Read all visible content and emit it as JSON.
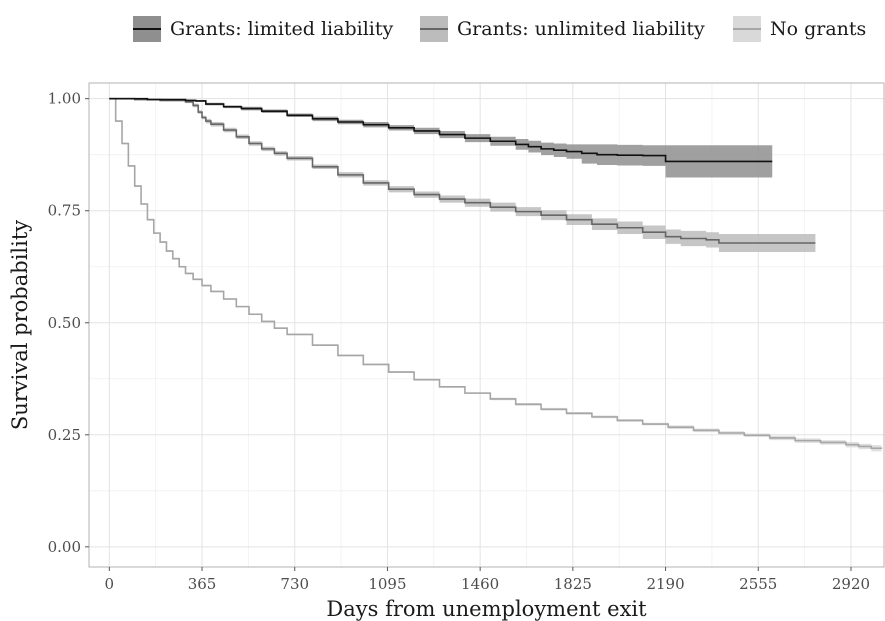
{
  "legend": {
    "items": [
      {
        "label": "Grants: limited liability",
        "band_color": "#8f8f8f",
        "line_color": "#111111"
      },
      {
        "label": "Grants: unlimited liability",
        "band_color": "#bcbcbc",
        "line_color": "#666666"
      },
      {
        "label": "No grants",
        "band_color": "#d9d9d9",
        "line_color": "#a6a6a6"
      }
    ]
  },
  "chart_data": {
    "type": "line",
    "xlabel": "Days from unemployment exit",
    "ylabel": "Survival probability",
    "xlim": [
      -80,
      3050
    ],
    "ylim": [
      -0.045,
      1.035
    ],
    "x_ticks": [
      0,
      365,
      730,
      1095,
      1460,
      1825,
      2190,
      2555,
      2920
    ],
    "y_ticks": [
      0.0,
      0.25,
      0.5,
      0.75,
      1.0
    ],
    "y_tick_labels": [
      "0.00",
      "0.25",
      "0.50",
      "0.75",
      "1.00"
    ],
    "grid": true,
    "legend_position": "top",
    "step": true,
    "series": [
      {
        "name": "Grants: limited liability",
        "line_color": "#111111",
        "band_color": "#8f8f8f",
        "x": [
          0,
          150,
          300,
          340,
          380,
          450,
          520,
          600,
          700,
          800,
          900,
          1000,
          1100,
          1200,
          1300,
          1400,
          1500,
          1600,
          1650,
          1700,
          1750,
          1800,
          1860,
          1920,
          2000,
          2100,
          2190,
          2300,
          2400,
          2500,
          2555,
          2610
        ],
        "y": [
          1.0,
          0.998,
          0.996,
          0.995,
          0.988,
          0.982,
          0.978,
          0.972,
          0.963,
          0.955,
          0.948,
          0.942,
          0.935,
          0.928,
          0.92,
          0.912,
          0.905,
          0.898,
          0.893,
          0.888,
          0.885,
          0.882,
          0.878,
          0.875,
          0.874,
          0.873,
          0.86,
          0.86,
          0.86,
          0.86,
          0.86,
          0.86
        ],
        "ci_lower": [
          1.0,
          0.997,
          0.994,
          0.993,
          0.985,
          0.979,
          0.974,
          0.968,
          0.959,
          0.95,
          0.943,
          0.936,
          0.929,
          0.921,
          0.912,
          0.903,
          0.895,
          0.886,
          0.88,
          0.874,
          0.87,
          0.866,
          0.855,
          0.852,
          0.851,
          0.85,
          0.824,
          0.824,
          0.824,
          0.824,
          0.824,
          0.824
        ],
        "ci_upper": [
          1.0,
          0.999,
          0.998,
          0.997,
          0.991,
          0.985,
          0.982,
          0.976,
          0.967,
          0.96,
          0.953,
          0.948,
          0.941,
          0.935,
          0.928,
          0.921,
          0.915,
          0.91,
          0.906,
          0.902,
          0.9,
          0.898,
          0.898,
          0.898,
          0.897,
          0.896,
          0.896,
          0.896,
          0.896,
          0.896,
          0.896,
          0.896
        ]
      },
      {
        "name": "Grants: unlimited liability",
        "line_color": "#666666",
        "band_color": "#bcbcbc",
        "x": [
          0,
          100,
          200,
          300,
          330,
          350,
          365,
          380,
          400,
          450,
          500,
          550,
          600,
          650,
          700,
          800,
          900,
          1000,
          1100,
          1200,
          1300,
          1400,
          1500,
          1600,
          1700,
          1800,
          1900,
          2000,
          2100,
          2190,
          2250,
          2300,
          2350,
          2400,
          2500,
          2600,
          2700,
          2780
        ],
        "y": [
          1.0,
          0.998,
          0.996,
          0.993,
          0.985,
          0.97,
          0.958,
          0.95,
          0.943,
          0.93,
          0.915,
          0.9,
          0.888,
          0.878,
          0.867,
          0.848,
          0.83,
          0.812,
          0.798,
          0.786,
          0.776,
          0.768,
          0.758,
          0.748,
          0.74,
          0.73,
          0.72,
          0.712,
          0.702,
          0.692,
          0.688,
          0.688,
          0.685,
          0.678,
          0.678,
          0.678,
          0.678,
          0.678
        ],
        "ci_lower": [
          1.0,
          0.997,
          0.994,
          0.99,
          0.981,
          0.966,
          0.954,
          0.945,
          0.938,
          0.925,
          0.91,
          0.895,
          0.883,
          0.873,
          0.862,
          0.843,
          0.824,
          0.806,
          0.791,
          0.779,
          0.768,
          0.759,
          0.748,
          0.738,
          0.729,
          0.718,
          0.707,
          0.698,
          0.687,
          0.676,
          0.671,
          0.671,
          0.668,
          0.658,
          0.658,
          0.658,
          0.658,
          0.658
        ],
        "ci_upper": [
          1.0,
          0.999,
          0.998,
          0.996,
          0.989,
          0.974,
          0.962,
          0.955,
          0.948,
          0.935,
          0.92,
          0.905,
          0.893,
          0.883,
          0.872,
          0.853,
          0.836,
          0.818,
          0.805,
          0.793,
          0.784,
          0.777,
          0.768,
          0.758,
          0.751,
          0.742,
          0.733,
          0.726,
          0.717,
          0.708,
          0.705,
          0.705,
          0.702,
          0.698,
          0.698,
          0.698,
          0.698,
          0.698
        ]
      },
      {
        "name": "No grants",
        "line_color": "#a6a6a6",
        "band_color": "#d9d9d9",
        "x": [
          0,
          25,
          50,
          75,
          100,
          125,
          150,
          175,
          200,
          225,
          250,
          275,
          300,
          330,
          365,
          400,
          450,
          500,
          550,
          600,
          650,
          700,
          800,
          900,
          1000,
          1100,
          1200,
          1300,
          1400,
          1500,
          1600,
          1700,
          1800,
          1900,
          2000,
          2100,
          2200,
          2300,
          2400,
          2500,
          2600,
          2700,
          2800,
          2900,
          2950,
          3000,
          3040
        ],
        "y": [
          1.0,
          0.95,
          0.9,
          0.85,
          0.805,
          0.765,
          0.73,
          0.7,
          0.68,
          0.66,
          0.643,
          0.625,
          0.61,
          0.597,
          0.583,
          0.57,
          0.553,
          0.536,
          0.519,
          0.503,
          0.488,
          0.474,
          0.45,
          0.427,
          0.407,
          0.39,
          0.373,
          0.357,
          0.343,
          0.33,
          0.318,
          0.307,
          0.298,
          0.29,
          0.282,
          0.274,
          0.267,
          0.26,
          0.254,
          0.249,
          0.243,
          0.237,
          0.233,
          0.228,
          0.224,
          0.22,
          0.219
        ],
        "ci_lower": [
          1.0,
          0.948,
          0.898,
          0.848,
          0.803,
          0.763,
          0.728,
          0.698,
          0.678,
          0.658,
          0.641,
          0.623,
          0.608,
          0.595,
          0.581,
          0.568,
          0.551,
          0.534,
          0.517,
          0.501,
          0.486,
          0.472,
          0.448,
          0.425,
          0.405,
          0.388,
          0.371,
          0.355,
          0.341,
          0.327,
          0.315,
          0.304,
          0.295,
          0.287,
          0.279,
          0.271,
          0.263,
          0.256,
          0.25,
          0.245,
          0.238,
          0.232,
          0.228,
          0.222,
          0.218,
          0.213,
          0.212
        ],
        "ci_upper": [
          1.0,
          0.952,
          0.902,
          0.852,
          0.807,
          0.767,
          0.732,
          0.702,
          0.682,
          0.662,
          0.645,
          0.627,
          0.612,
          0.599,
          0.585,
          0.572,
          0.555,
          0.538,
          0.521,
          0.505,
          0.49,
          0.476,
          0.452,
          0.429,
          0.409,
          0.392,
          0.375,
          0.359,
          0.345,
          0.333,
          0.321,
          0.31,
          0.301,
          0.293,
          0.285,
          0.277,
          0.271,
          0.264,
          0.258,
          0.253,
          0.248,
          0.242,
          0.238,
          0.234,
          0.23,
          0.227,
          0.226
        ]
      }
    ]
  }
}
